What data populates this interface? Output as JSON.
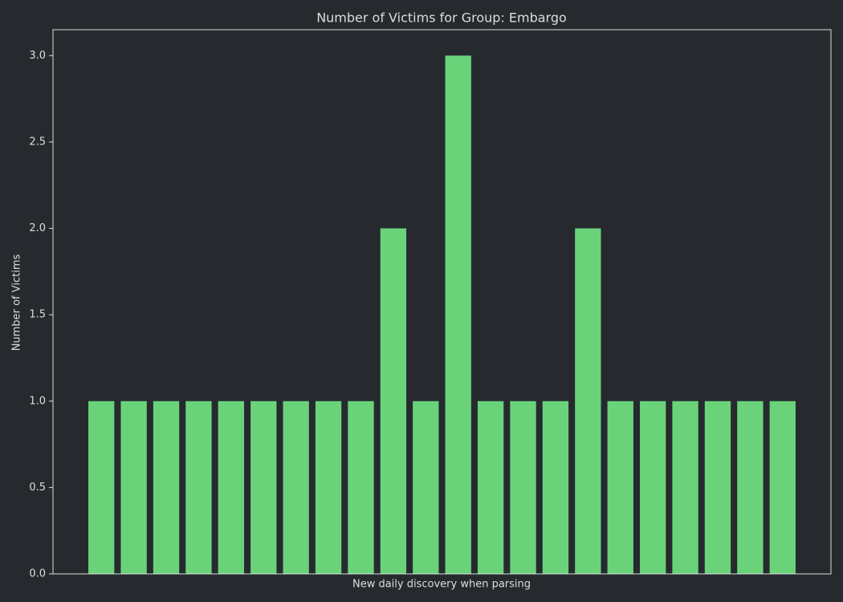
{
  "chart_data": {
    "type": "bar",
    "title": "Number of Victims for Group: Embargo",
    "x_label": "New daily discovery when parsing",
    "y_label": "Number of Victims",
    "categories": [
      null,
      null,
      null,
      null,
      null,
      null,
      null,
      null,
      null,
      null,
      null,
      null,
      null,
      null,
      null,
      null,
      null,
      null,
      null,
      null,
      null,
      null
    ],
    "values": [
      1,
      1,
      1,
      1,
      1,
      1,
      1,
      1,
      1,
      2,
      1,
      3,
      1,
      1,
      1,
      2,
      1,
      1,
      1,
      1,
      1,
      1
    ],
    "color": "#6ad37a",
    "ylim": [
      0,
      3.15
    ],
    "yticks": [
      {
        "value": 0,
        "label": "0.0"
      },
      0.5,
      {
        "value": 1,
        "label": "1.0"
      },
      1.5,
      {
        "value": 2,
        "label": "2.0"
      },
      2.5,
      {
        "value": 3,
        "label": "3.0"
      }
    ],
    "grid": false
  }
}
